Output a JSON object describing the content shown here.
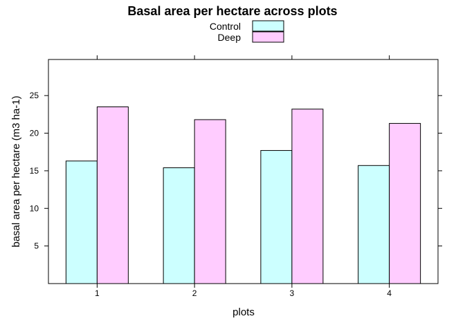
{
  "chart_data": {
    "type": "bar",
    "title": "Basal area per hectare across plots",
    "xlabel": "plots",
    "ylabel": "basal area per hectare (m3 ha-1)",
    "categories": [
      "1",
      "2",
      "3",
      "4"
    ],
    "series": [
      {
        "name": "Control",
        "values": [
          16.3,
          15.4,
          17.7,
          15.7
        ],
        "color": "#ccffff"
      },
      {
        "name": "Deep",
        "values": [
          23.5,
          21.8,
          23.2,
          21.3
        ],
        "color": "#ffccff"
      }
    ],
    "ylim": [
      0,
      29.8
    ],
    "yticks": [
      5,
      10,
      15,
      20,
      25
    ],
    "legend_position": "top",
    "grid": false
  }
}
